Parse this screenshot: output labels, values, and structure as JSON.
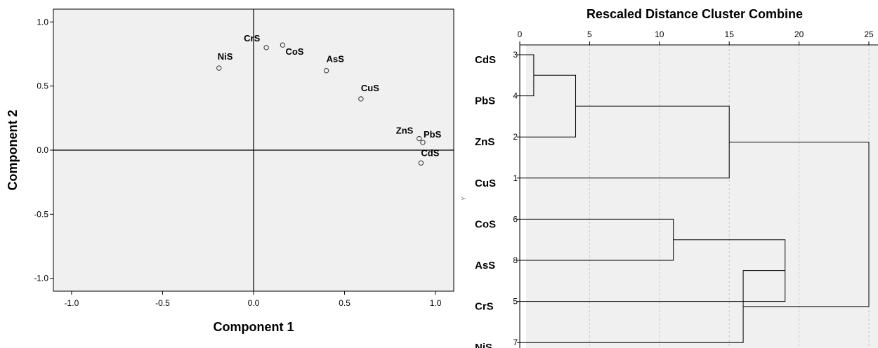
{
  "chart_data": [
    {
      "type": "scatter",
      "xlabel": "Component 1",
      "ylabel": "Component 2",
      "xlim": [
        -1.1,
        1.1
      ],
      "ylim": [
        -1.1,
        1.1
      ],
      "x_ticks": [
        -1.0,
        -0.5,
        0.0,
        0.5,
        1.0
      ],
      "x_tick_labels": [
        "-1.0",
        "-0.5",
        "0.0",
        "0.5",
        "1.0"
      ],
      "y_ticks": [
        1.0,
        0.5,
        0.0,
        -0.5,
        -1.0
      ],
      "y_tick_labels": [
        "1.0",
        "0.5",
        "0.0",
        "-0.5",
        "-1.0"
      ],
      "points": [
        {
          "label": "NiS",
          "x": -0.19,
          "y": 0.64
        },
        {
          "label": "CrS",
          "x": 0.07,
          "y": 0.8
        },
        {
          "label": "CoS",
          "x": 0.16,
          "y": 0.82
        },
        {
          "label": "AsS",
          "x": 0.4,
          "y": 0.62
        },
        {
          "label": "CuS",
          "x": 0.59,
          "y": 0.4
        },
        {
          "label": "ZnS",
          "x": 0.91,
          "y": 0.09
        },
        {
          "label": "PbS",
          "x": 0.93,
          "y": 0.06
        },
        {
          "label": "CdS",
          "x": 0.92,
          "y": -0.1
        }
      ],
      "grid": false
    },
    {
      "type": "dendrogram",
      "title": "Rescaled Distance Cluster Combine",
      "xlim": [
        0,
        25
      ],
      "x_ticks": [
        0,
        5,
        10,
        15,
        20,
        25
      ],
      "x_tick_labels": [
        "0",
        "5",
        "10",
        "15",
        "20",
        "25"
      ],
      "y_axis_letter": "Y",
      "leaves": [
        {
          "label": "CdS",
          "case": "3"
        },
        {
          "label": "PbS",
          "case": "4"
        },
        {
          "label": "ZnS",
          "case": "2"
        },
        {
          "label": "CuS",
          "case": "1"
        },
        {
          "label": "CoS",
          "case": "6"
        },
        {
          "label": "AsS",
          "case": "8"
        },
        {
          "label": "CrS",
          "case": "5"
        },
        {
          "label": "NiS",
          "case": "7"
        }
      ],
      "merges": [
        {
          "a": "L0",
          "b": "L1",
          "height": 1
        },
        {
          "a": "M0",
          "b": "L2",
          "height": 4
        },
        {
          "a": "M1",
          "b": "L3",
          "height": 15
        },
        {
          "a": "L4",
          "b": "L5",
          "height": 11
        },
        {
          "a": "M3",
          "b": "L6",
          "height": 19
        },
        {
          "a": "M4",
          "b": "L7",
          "height": 16
        },
        {
          "a": "M2",
          "b": "M5",
          "height": 25
        }
      ],
      "grid": "vertical dashed"
    }
  ]
}
